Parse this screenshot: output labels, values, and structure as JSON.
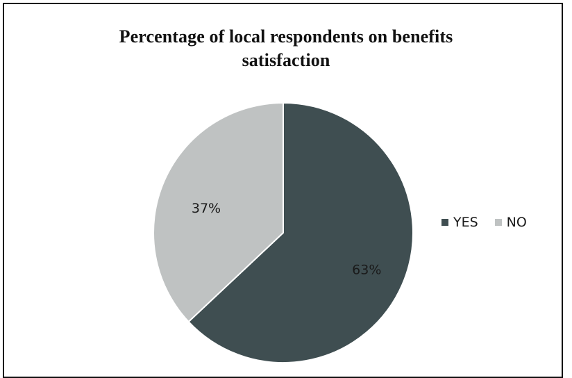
{
  "chart_data": {
    "type": "pie",
    "title_lines": [
      "Percentage of local respondents on benefits",
      "satisfaction"
    ],
    "slices": [
      {
        "label": "YES",
        "value": 63,
        "display": "63%",
        "color": "#3f4e51"
      },
      {
        "label": "NO",
        "value": 37,
        "display": "37%",
        "color": "#bfc2c2"
      }
    ],
    "legend_position": "right"
  }
}
